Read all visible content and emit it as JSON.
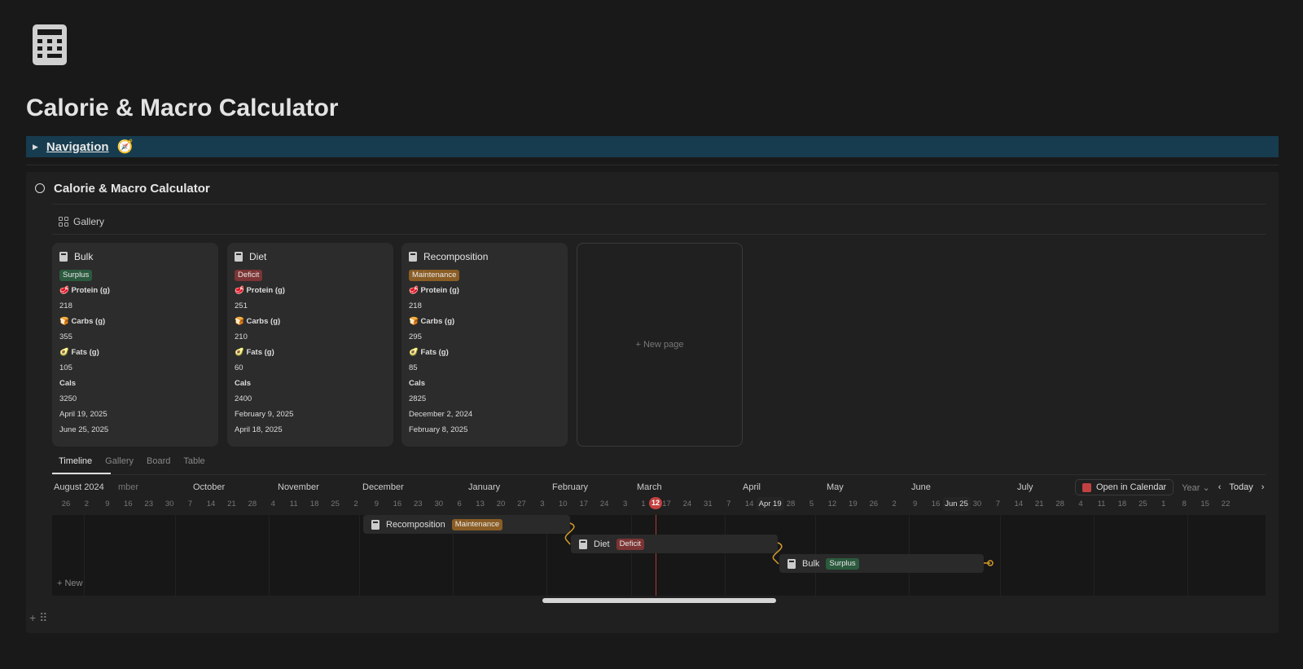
{
  "page": {
    "title": "Calorie & Macro Calculator",
    "icon": "calculator-icon"
  },
  "navigation": {
    "label": "Navigation",
    "emoji": "🧭"
  },
  "database": {
    "title": "Calorie & Macro Calculator",
    "view_label": "Gallery"
  },
  "cards": [
    {
      "name": "Bulk",
      "tag": "Surplus",
      "tag_color": "#2b5a3e",
      "protein_label": "🥩 Protein (g)",
      "protein": "218",
      "carbs_label": "🍞 Carbs (g)",
      "carbs": "355",
      "fats_label": "🥑 Fats (g)",
      "fats": "105",
      "cals_label": "Cals",
      "cals": "3250",
      "start": "April 19, 2025",
      "end": "June 25, 2025"
    },
    {
      "name": "Diet",
      "tag": "Deficit",
      "tag_color": "#7c3434",
      "protein_label": "🥩 Protein (g)",
      "protein": "251",
      "carbs_label": "🍞 Carbs (g)",
      "carbs": "210",
      "fats_label": "🥑 Fats (g)",
      "fats": "60",
      "cals_label": "Cals",
      "cals": "2400",
      "start": "February 9, 2025",
      "end": "April 18, 2025"
    },
    {
      "name": "Recomposition",
      "tag": "Maintenance",
      "tag_color": "#8a5d24",
      "protein_label": "🥩 Protein (g)",
      "protein": "218",
      "carbs_label": "🍞 Carbs (g)",
      "carbs": "295",
      "fats_label": "🥑 Fats (g)",
      "fats": "85",
      "cals_label": "Cals",
      "cals": "2825",
      "start": "December 2, 2024",
      "end": "February 8, 2025"
    }
  ],
  "new_page": "+ New page",
  "tabs": [
    "Timeline",
    "Gallery",
    "Board",
    "Table"
  ],
  "timeline": {
    "months": [
      "August 2024",
      "mber",
      "October",
      "November",
      "December",
      "January",
      "February",
      "March",
      "April",
      "May",
      "June",
      "July"
    ],
    "weeks": [
      "26",
      "2",
      "9",
      "16",
      "23",
      "30",
      "7",
      "14",
      "21",
      "28",
      "4",
      "11",
      "18",
      "25",
      "2",
      "9",
      "16",
      "23",
      "30",
      "6",
      "13",
      "20",
      "27",
      "3",
      "10",
      "17",
      "24",
      "3",
      "1",
      "17",
      "24",
      "31",
      "7",
      "14",
      "Apr 19",
      "28",
      "5",
      "12",
      "19",
      "26",
      "2",
      "9",
      "16",
      "Jun 25",
      "30",
      "7",
      "14",
      "21",
      "28",
      "4",
      "11",
      "18",
      "25",
      "1",
      "8",
      "15",
      "22"
    ],
    "today": "12",
    "open_calendar": "Open in Calendar",
    "scale": "Year ⌄",
    "prev": "‹",
    "today_label": "Today",
    "next": "›",
    "new": "+ New",
    "bars": [
      {
        "name": "Recomposition",
        "tag": "Maintenance"
      },
      {
        "name": "Diet",
        "tag": "Deficit"
      },
      {
        "name": "Bulk",
        "tag": "Surplus"
      }
    ]
  },
  "footer": {
    "add": "+",
    "drag": "⠿"
  }
}
